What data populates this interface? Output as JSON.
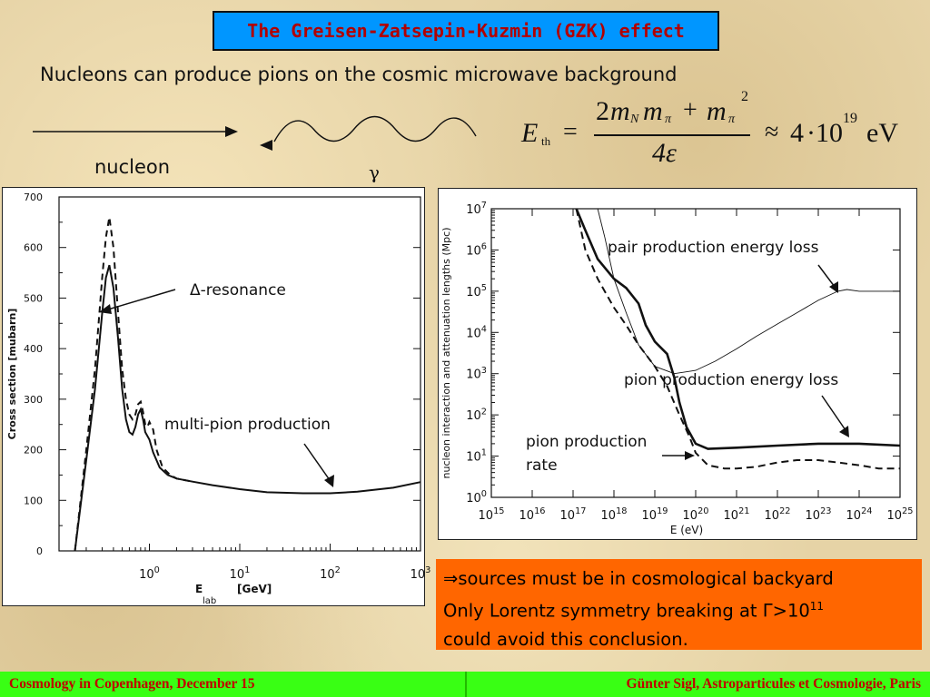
{
  "slide": {
    "title": "The Greisen-Zatsepin-Kuzmin (GZK) effect",
    "subtitle": "Nucleons can produce pions on the cosmic microwave background",
    "nucleon_label": "nucleon",
    "gamma_label": "γ",
    "formula": {
      "E": "E",
      "sub": "th",
      "eq": "=",
      "numerator_2": "2",
      "m": "m",
      "N": "N",
      "pi": "π",
      "plus": "+",
      "sq": "2",
      "denominator": "4ε",
      "approx": "≈",
      "four": "4",
      "dot": "·",
      "ten": "10",
      "exp": "19",
      "unit": "eV"
    },
    "conclusion": {
      "arrow": "⇒",
      "line1": "sources must be in cosmological backyard",
      "line2_prefix": "Only Lorentz symmetry breaking at Γ>10",
      "line2_sup": "11",
      "line3": "could avoid this conclusion."
    },
    "footer": {
      "left": "Cosmology in Copenhagen, December 15",
      "right": "Günter Sigl, Astroparticules et Cosmologie, Paris"
    },
    "colors": {
      "title_bg": "#0096ff",
      "title_text": "#b10000",
      "orange_box": "#ff6600",
      "footer_bg": "#39ff14",
      "footer_text": "#c00000"
    }
  },
  "chart_data": [
    {
      "type": "line",
      "xscale": "log",
      "xlim": [
        0.1,
        1000
      ],
      "ylim": [
        0,
        700
      ],
      "xlabel": "E",
      "xlabel_sub": "lab",
      "xlabel_unit": "[GeV]",
      "ylabel": "Cross section [mubarn]",
      "yticks": [
        0,
        100,
        200,
        300,
        400,
        500,
        600,
        700
      ],
      "yticks_labels": [
        "0",
        "100",
        "200",
        "300",
        "400",
        "500",
        "600",
        "700"
      ],
      "xticks": [
        1,
        10,
        100,
        1000
      ],
      "xticks_base": "10",
      "xticks_exp": [
        "0",
        "1",
        "2",
        "3"
      ],
      "annotations": {
        "delta": "Δ-resonance",
        "multi": "multi-pion production"
      },
      "series": [
        {
          "style": "solid",
          "x": [
            0.15,
            0.2,
            0.25,
            0.3,
            0.33,
            0.36,
            0.4,
            0.45,
            0.5,
            0.55,
            0.6,
            0.65,
            0.7,
            0.75,
            0.8,
            0.85,
            0.9,
            1.0,
            1.1,
            1.3,
            1.6,
            2,
            3,
            5,
            10,
            20,
            50,
            100,
            200,
            500,
            1000
          ],
          "y": [
            0,
            180,
            320,
            470,
            540,
            565,
            520,
            420,
            320,
            260,
            235,
            230,
            245,
            270,
            280,
            260,
            235,
            220,
            195,
            165,
            150,
            143,
            137,
            130,
            122,
            116,
            114,
            114,
            117,
            125,
            136
          ]
        },
        {
          "style": "dashed",
          "x": [
            0.15,
            0.2,
            0.25,
            0.3,
            0.33,
            0.36,
            0.4,
            0.45,
            0.5,
            0.55,
            0.6,
            0.65,
            0.7,
            0.75,
            0.8,
            0.85,
            0.9,
            0.95,
            1.0,
            1.1,
            1.2,
            1.4,
            1.7,
            2,
            3
          ],
          "y": [
            0,
            200,
            360,
            540,
            620,
            660,
            600,
            470,
            360,
            300,
            270,
            260,
            270,
            290,
            295,
            275,
            250,
            245,
            255,
            240,
            200,
            165,
            150,
            143,
            137
          ]
        }
      ]
    },
    {
      "type": "line",
      "xscale": "log",
      "yscale": "log",
      "xlim": [
        1000000000000000.0,
        1e+25
      ],
      "ylim": [
        1,
        10000000.0
      ],
      "xlabel": "E (eV)",
      "ylabel": "nucleon interaction and attenuation lengths (Mpc)",
      "xticks_base": "10",
      "xticks_exp": [
        "15",
        "16",
        "17",
        "18",
        "19",
        "20",
        "21",
        "22",
        "23",
        "24",
        "25"
      ],
      "yticks_base": "10",
      "yticks_exp": [
        "0",
        "1",
        "2",
        "3",
        "4",
        "5",
        "6",
        "7"
      ],
      "annotations": {
        "pair": "pair production energy loss",
        "pion_loss": "pion production energy loss",
        "pion_rate_1": "pion production",
        "pion_rate_2": "rate"
      },
      "series": [
        {
          "name": "pair production energy loss",
          "style": "thin",
          "x": [
            4e+17,
            6e+17,
            1e+18,
            2e+18,
            4e+18,
            1e+19,
            3e+19,
            1e+20,
            3e+20,
            1e+21,
            3e+21,
            1e+22,
            3e+22,
            1e+23,
            3e+23,
            5e+23,
            1e+24,
            3e+24,
            1e+25
          ],
          "y": [
            10000000.0,
            2000000.0,
            200000.0,
            30000.0,
            5000.0,
            1500.0,
            1000.0,
            1200.0,
            2000.0,
            4000.0,
            8000.0,
            16000.0,
            30000.0,
            60000.0,
            100000.0,
            110000.0,
            100000.0,
            100000.0,
            100000.0
          ]
        },
        {
          "name": "pion production energy loss",
          "style": "thick",
          "x": [
            1.2e+17,
            2e+17,
            4e+17,
            1e+18,
            2e+18,
            4e+18,
            6e+18,
            1e+19,
            2e+19,
            3e+19,
            4e+19,
            6e+19,
            1e+20,
            2e+20,
            1e+21,
            1e+22,
            1e+23,
            1e+24,
            1e+25
          ],
          "y": [
            10000000.0,
            3000000.0,
            600000.0,
            200000.0,
            120000.0,
            50000.0,
            15000.0,
            6000.0,
            3000.0,
            800.0,
            200.0,
            50,
            20,
            15,
            16,
            18,
            20,
            20,
            18
          ]
        },
        {
          "name": "pion production rate",
          "style": "dashed",
          "x": [
            1.2e+17,
            2e+17,
            4e+17,
            1e+18,
            2e+18,
            4e+18,
            1e+19,
            2e+19,
            4e+19,
            7e+19,
            1e+20,
            2e+20,
            5e+20,
            1e+21,
            3e+21,
            1e+22,
            3e+22,
            1e+23,
            3e+23,
            1e+24,
            3e+24,
            1e+25
          ],
          "y": [
            10000000.0,
            1000000.0,
            200000.0,
            40000.0,
            15000.0,
            5000.0,
            1500.0,
            500.0,
            100.0,
            30,
            12,
            6,
            5,
            5,
            5.5,
            7,
            8,
            8,
            7,
            6,
            5,
            5
          ]
        }
      ]
    }
  ]
}
